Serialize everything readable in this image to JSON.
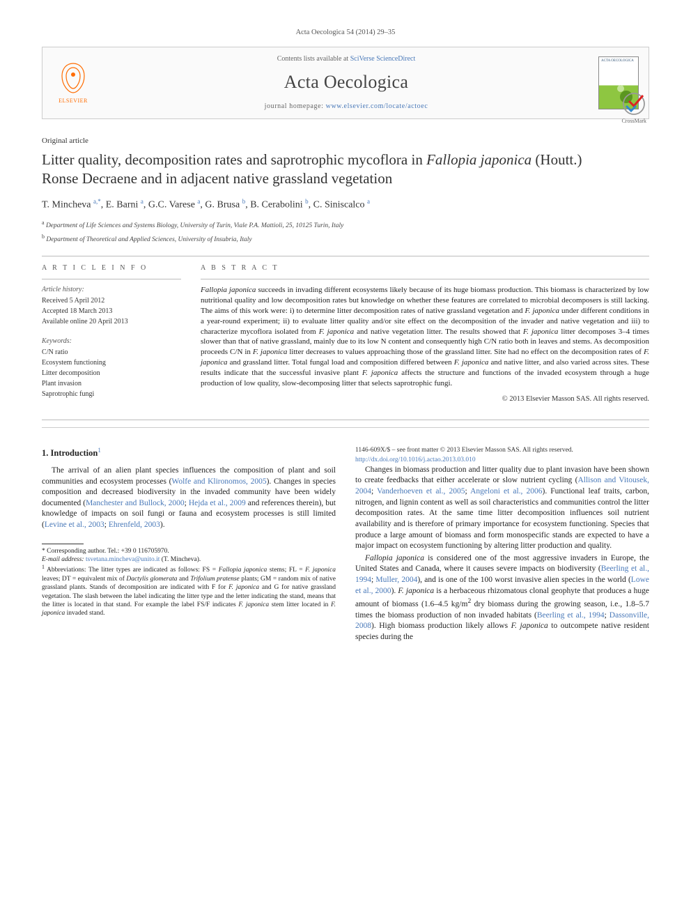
{
  "header": {
    "citation": "Acta Oecologica 54 (2014) 29–35"
  },
  "banner": {
    "contents_prefix": "Contents lists available at ",
    "contents_link": "SciVerse ScienceDirect",
    "journal": "Acta Oecologica",
    "homepage_prefix": "journal homepage: ",
    "homepage_link": "www.elsevier.com/locate/actoec",
    "elsevier": "ELSEVIER",
    "cover_label": "ACTA OECOLOGICA"
  },
  "crossmark": "CrossMark",
  "article_type": "Original article",
  "title_parts": {
    "pre": "Litter quality, decomposition rates and saprotrophic mycoflora in ",
    "ital": "Fallopia japonica",
    "post": " (Houtt.) Ronse Decraene and in adjacent native grassland vegetation"
  },
  "authors_html": "T. Mincheva <sup>a,*</sup>, E. Barni <sup>a</sup>, G.C. Varese <sup>a</sup>, G. Brusa <sup>b</sup>, B. Cerabolini <sup>b</sup>, C. Siniscalco <sup>a</sup>",
  "affiliations": [
    {
      "sup": "a",
      "text": "Department of Life Sciences and Systems Biology, University of Turin, Viale P.A. Mattioli, 25, 10125 Turin, Italy"
    },
    {
      "sup": "b",
      "text": "Department of Theoretical and Applied Sciences, University of Insubria, Italy"
    }
  ],
  "info": {
    "head": "A R T I C L E   I N F O",
    "history_label": "Article history:",
    "history": [
      "Received 5 April 2012",
      "Accepted 18 March 2013",
      "Available online 20 April 2013"
    ],
    "kw_label": "Keywords:",
    "keywords": [
      "C/N ratio",
      "Ecosystem functioning",
      "Litter decomposition",
      "Plant invasion",
      "Saprotrophic fungi"
    ]
  },
  "abstract": {
    "head": "A B S T R A C T",
    "text_parts": [
      {
        "i": true,
        "t": "Fallopia japonica"
      },
      {
        "i": false,
        "t": " succeeds in invading different ecosystems likely because of its huge biomass production. This biomass is characterized by low nutritional quality and low decomposition rates but knowledge on whether these features are correlated to microbial decomposers is still lacking. The aims of this work were: i) to determine litter decomposition rates of native grassland vegetation and "
      },
      {
        "i": true,
        "t": "F. japonica"
      },
      {
        "i": false,
        "t": " under different conditions in a year-round experiment; ii) to evaluate litter quality and/or site effect on the decomposition of the invader and native vegetation and iii) to characterize mycoflora isolated from "
      },
      {
        "i": true,
        "t": "F. japonica"
      },
      {
        "i": false,
        "t": " and native vegetation litter. The results showed that "
      },
      {
        "i": true,
        "t": "F. japonica"
      },
      {
        "i": false,
        "t": " litter decomposes 3–4 times slower than that of native grassland, mainly due to its low N content and consequently high C/N ratio both in leaves and stems. As decomposition proceeds C/N in "
      },
      {
        "i": true,
        "t": "F. japonica"
      },
      {
        "i": false,
        "t": " litter decreases to values approaching those of the grassland litter. Site had no effect on the decomposition rates of "
      },
      {
        "i": true,
        "t": "F. japonica"
      },
      {
        "i": false,
        "t": " and grassland litter. Total fungal load and composition differed between "
      },
      {
        "i": true,
        "t": "F. japonica"
      },
      {
        "i": false,
        "t": " and native litter, and also varied across sites. These results indicate that the successful invasive plant "
      },
      {
        "i": true,
        "t": "F. japonica"
      },
      {
        "i": false,
        "t": " affects the structure and functions of the invaded ecosystem through a huge production of low quality, slow-decomposing litter that selects saprotrophic fungi."
      }
    ],
    "copyright": "© 2013 Elsevier Masson SAS. All rights reserved."
  },
  "section1": {
    "title": "1. Introduction",
    "title_sup": "1",
    "p1_parts": [
      {
        "t": "The arrival of an alien plant species influences the composition of plant and soil communities and ecosystem processes ("
      },
      {
        "r": true,
        "t": "Wolfe and Klironomos, 2005"
      },
      {
        "t": "). Changes in species composition and decreased biodiversity in the invaded community have been widely documented ("
      },
      {
        "r": true,
        "t": "Manchester and Bullock, 2000"
      },
      {
        "t": "; "
      },
      {
        "r": true,
        "t": "Hejda et al., 2009"
      },
      {
        "t": " and references therein), but knowledge of impacts on soil fungi or fauna and ecosystem processes is still limited ("
      },
      {
        "r": true,
        "t": "Levine et al., 2003"
      },
      {
        "t": "; "
      },
      {
        "r": true,
        "t": "Ehrenfeld, 2003"
      },
      {
        "t": ")."
      }
    ],
    "p2_parts": [
      {
        "t": "Changes in biomass production and litter quality due to plant invasion have been shown to create feedbacks that either accelerate or slow nutrient cycling ("
      },
      {
        "r": true,
        "t": "Allison and Vitousek, 2004"
      },
      {
        "t": "; "
      },
      {
        "r": true,
        "t": "Vanderhoeven et al., 2005"
      },
      {
        "t": "; "
      },
      {
        "r": true,
        "t": "Angeloni et al., 2006"
      },
      {
        "t": "). Functional leaf traits, carbon, nitrogen, and lignin content as well as soil characteristics and communities control the litter decomposition rates. At the same time litter decomposition influences soil nutrient availability and is therefore of primary importance for ecosystem functioning. Species that produce a large amount of biomass and form monospecific stands are expected to have a major impact on ecosystem functioning by altering litter production and quality."
      }
    ],
    "p3_parts": [
      {
        "i": true,
        "t": "Fallopia japonica"
      },
      {
        "t": " is considered one of the most aggressive invaders in Europe, the United States and Canada, where it causes severe impacts on biodiversity ("
      },
      {
        "r": true,
        "t": "Beerling et al., 1994"
      },
      {
        "t": "; "
      },
      {
        "r": true,
        "t": "Muller, 2004"
      },
      {
        "t": "), and is one of the 100 worst invasive alien species in the world ("
      },
      {
        "r": true,
        "t": "Lowe et al., 2000"
      },
      {
        "t": "). "
      },
      {
        "i": true,
        "t": "F. japonica"
      },
      {
        "t": " is a herbaceous rhizomatous clonal geophyte that produces a huge amount of biomass (1.6–4.5 kg/m"
      },
      {
        "sup": true,
        "t": "2"
      },
      {
        "t": " dry biomass during the growing season, i.e., 1.8–5.7 times the biomass production of non invaded habitats ("
      },
      {
        "r": true,
        "t": "Beerling et al., 1994"
      },
      {
        "t": "; "
      },
      {
        "r": true,
        "t": "Dassonville, 2008"
      },
      {
        "t": "). High biomass production likely allows "
      },
      {
        "i": true,
        "t": "F. japonica"
      },
      {
        "t": " to outcompete native resident species during the"
      }
    ]
  },
  "footnotes": {
    "corr": "* Corresponding author. Tel.: +39 0 116705970.",
    "email_label": "E-mail address: ",
    "email": "tsvetana.mincheva@unito.it",
    "email_suffix": " (T. Mincheva).",
    "abbr_parts": [
      {
        "sup": true,
        "t": "1"
      },
      {
        "t": " Abbreviations: The litter types are indicated as follows: FS = "
      },
      {
        "i": true,
        "t": "Fallopia japonica"
      },
      {
        "t": " stems; FL = "
      },
      {
        "i": true,
        "t": "F. japonica"
      },
      {
        "t": " leaves; DT = equivalent mix of "
      },
      {
        "i": true,
        "t": "Dactylis glomerata"
      },
      {
        "t": " and "
      },
      {
        "i": true,
        "t": "Trifolium pratense"
      },
      {
        "t": " plants; GM = random mix of native grassland plants. Stands of decomposition are indicated with F for "
      },
      {
        "i": true,
        "t": "F. japonica"
      },
      {
        "t": " and G for native grassland vegetation. The slash between the label indicating the litter type and the letter indicating the stand, means that the litter is located in that stand. For example the label FS/F indicates "
      },
      {
        "i": true,
        "t": "F. japonica"
      },
      {
        "t": " stem litter located in "
      },
      {
        "i": true,
        "t": "F. japonica"
      },
      {
        "t": " invaded stand."
      }
    ]
  },
  "bottom": {
    "line1": "1146-609X/$ – see front matter © 2013 Elsevier Masson SAS. All rights reserved.",
    "doi": "http://dx.doi.org/10.1016/j.actao.2013.03.010"
  }
}
